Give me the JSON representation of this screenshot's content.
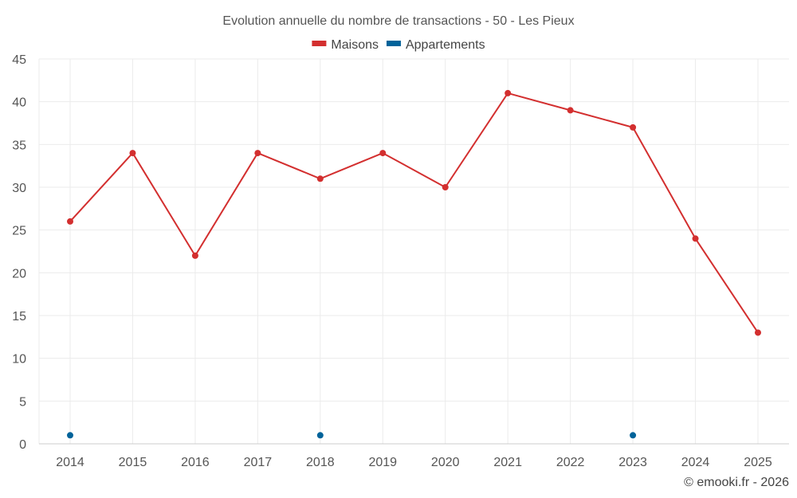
{
  "chart_data": {
    "type": "line",
    "title": "Evolution annuelle du nombre de transactions - 50 - Les Pieux",
    "categories": [
      "2014",
      "2015",
      "2016",
      "2017",
      "2018",
      "2019",
      "2020",
      "2021",
      "2022",
      "2023",
      "2024",
      "2025"
    ],
    "ylim": [
      0,
      45
    ],
    "yticks": [
      0,
      5,
      10,
      15,
      20,
      25,
      30,
      35,
      40,
      45
    ],
    "grid": true,
    "legend_position": "top-center",
    "series": [
      {
        "name": "Maisons",
        "color": "#d32f2f",
        "style": "line+markers",
        "values": [
          26,
          34,
          22,
          34,
          31,
          34,
          30,
          41,
          39,
          37,
          24,
          13
        ]
      },
      {
        "name": "Appartements",
        "color": "#00639a",
        "style": "markers",
        "values": [
          1,
          null,
          null,
          null,
          1,
          null,
          null,
          null,
          null,
          1,
          null,
          null
        ]
      }
    ],
    "credit": "© emooki.fr - 2026"
  }
}
